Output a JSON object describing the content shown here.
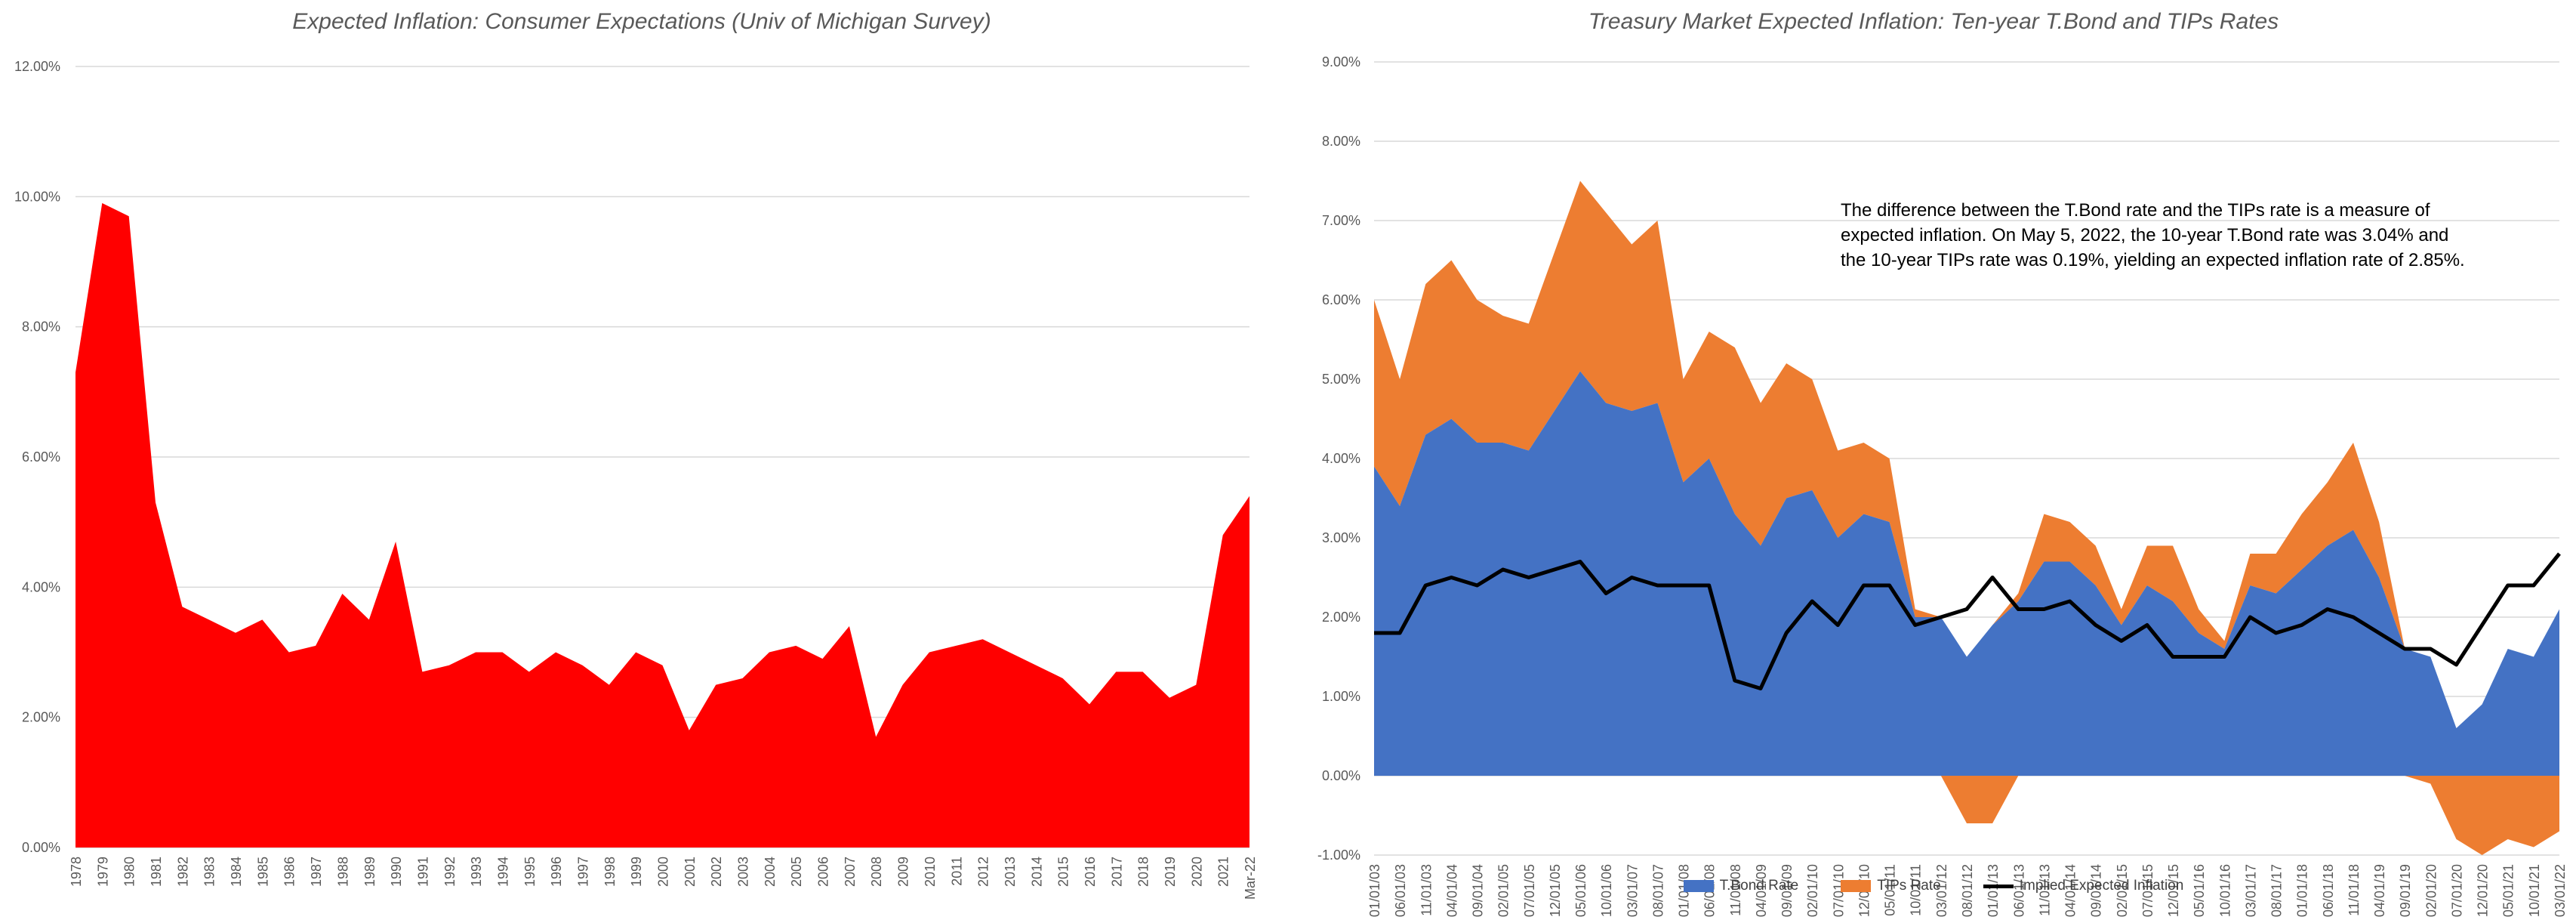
{
  "chart_data": [
    {
      "type": "area",
      "title": "Expected Inflation: Consumer Expectations (Univ of Michigan Survey)",
      "xlabel": "",
      "ylabel": "",
      "ylim": [
        0,
        12
      ],
      "y_ticks": [
        "0.00%",
        "2.00%",
        "4.00%",
        "6.00%",
        "8.00%",
        "10.00%",
        "12.00%"
      ],
      "categories": [
        "1978",
        "1979",
        "1980",
        "1981",
        "1982",
        "1983",
        "1984",
        "1985",
        "1986",
        "1987",
        "1988",
        "1989",
        "1990",
        "1991",
        "1992",
        "1993",
        "1994",
        "1995",
        "1996",
        "1997",
        "1998",
        "1999",
        "2000",
        "2001",
        "2002",
        "2003",
        "2004",
        "2005",
        "2006",
        "2007",
        "2008",
        "2009",
        "2010",
        "2011",
        "2012",
        "2013",
        "2014",
        "2015",
        "2016",
        "2017",
        "2018",
        "2019",
        "2020",
        "2021",
        "Mar-22"
      ],
      "series": [
        {
          "values": [
            7.3,
            9.9,
            9.7,
            5.3,
            3.7,
            3.5,
            3.3,
            3.5,
            3.0,
            3.1,
            3.9,
            3.5,
            4.7,
            2.7,
            2.8,
            3.0,
            3.0,
            2.7,
            3.0,
            2.8,
            2.5,
            3.0,
            2.8,
            1.8,
            2.5,
            2.6,
            3.0,
            3.1,
            2.9,
            3.4,
            1.7,
            2.5,
            3.0,
            3.1,
            3.2,
            3.0,
            2.8,
            2.6,
            2.2,
            2.7,
            2.7,
            2.3,
            2.5,
            4.8,
            5.4
          ]
        }
      ],
      "colors": {
        "fill": "#ff0000",
        "grid": "#d9d9d9"
      },
      "grid": true,
      "legend": "none"
    },
    {
      "type": "area",
      "title": "Treasury Market Expected Inflation: Ten-year T.Bond and TIPs Rates",
      "xlabel": "",
      "ylabel": "",
      "ylim": [
        -1,
        9
      ],
      "y_ticks": [
        "-1.00%",
        "0.00%",
        "1.00%",
        "2.00%",
        "3.00%",
        "4.00%",
        "5.00%",
        "6.00%",
        "7.00%",
        "8.00%",
        "9.00%"
      ],
      "x_tick_labels": [
        "01/01/03",
        "06/01/03",
        "11/01/03",
        "04/01/04",
        "09/01/04",
        "02/01/05",
        "07/01/05",
        "12/01/05",
        "05/01/06",
        "10/01/06",
        "03/01/07",
        "08/01/07",
        "01/01/08",
        "06/01/08",
        "11/01/08",
        "04/01/09",
        "09/01/09",
        "02/01/10",
        "07/01/10",
        "12/01/10",
        "05/01/11",
        "10/01/11",
        "03/01/12",
        "08/01/12",
        "01/01/13",
        "06/01/13",
        "11/01/13",
        "04/01/14",
        "09/01/14",
        "02/01/15",
        "07/01/15",
        "12/01/15",
        "05/01/16",
        "10/01/16",
        "03/01/17",
        "08/01/17",
        "01/01/18",
        "06/01/18",
        "11/01/18",
        "04/01/19",
        "09/01/19",
        "02/01/20",
        "07/01/20",
        "12/01/20",
        "05/01/21",
        "10/01/21",
        "03/01/22"
      ],
      "x": [
        "01/01/03",
        "06/01/03",
        "11/01/03",
        "04/01/04",
        "09/01/04",
        "02/01/05",
        "07/01/05",
        "12/01/05",
        "05/01/06",
        "10/01/06",
        "03/01/07",
        "08/01/07",
        "01/01/08",
        "06/01/08",
        "11/01/08",
        "04/01/09",
        "09/01/09",
        "02/01/10",
        "07/01/10",
        "12/01/10",
        "05/01/11",
        "10/01/11",
        "03/01/12",
        "08/01/12",
        "01/01/13",
        "06/01/13",
        "11/01/13",
        "04/01/14",
        "09/01/14",
        "02/01/15",
        "07/01/15",
        "12/01/15",
        "05/01/16",
        "10/01/16",
        "03/01/17",
        "08/01/17",
        "01/01/18",
        "06/01/18",
        "11/01/18",
        "04/01/19",
        "09/01/19",
        "02/01/20",
        "07/01/20",
        "12/01/20",
        "05/01/21",
        "10/01/21",
        "03/01/22"
      ],
      "series": [
        {
          "name": "T.Bond Rate",
          "values": [
            3.9,
            3.4,
            4.3,
            4.5,
            4.2,
            4.2,
            4.1,
            4.6,
            5.1,
            4.7,
            4.6,
            4.7,
            3.7,
            4.0,
            3.3,
            2.9,
            3.5,
            3.6,
            3.0,
            3.3,
            3.2,
            2.0,
            2.0,
            1.5,
            1.9,
            2.2,
            2.7,
            2.7,
            2.4,
            1.9,
            2.4,
            2.2,
            1.8,
            1.6,
            2.4,
            2.3,
            2.6,
            2.9,
            3.1,
            2.5,
            1.6,
            1.5,
            0.6,
            0.9,
            1.6,
            1.5,
            2.1
          ]
        },
        {
          "name": "TIPs Rate",
          "values": [
            2.1,
            1.6,
            1.9,
            2.0,
            1.8,
            1.6,
            1.6,
            2.0,
            2.4,
            2.4,
            2.1,
            2.3,
            1.3,
            1.6,
            2.1,
            1.8,
            1.7,
            1.4,
            1.1,
            0.9,
            0.8,
            0.1,
            0.0,
            -0.6,
            -0.6,
            0.1,
            0.6,
            0.5,
            0.5,
            0.2,
            0.5,
            0.7,
            0.3,
            0.1,
            0.4,
            0.5,
            0.7,
            0.8,
            1.1,
            0.7,
            0.0,
            -0.1,
            -0.8,
            -1.0,
            -0.8,
            -0.9,
            -0.7
          ]
        },
        {
          "name": "Implied Expected Inflation",
          "values": [
            1.8,
            1.8,
            2.4,
            2.5,
            2.4,
            2.6,
            2.5,
            2.6,
            2.7,
            2.3,
            2.5,
            2.4,
            2.4,
            2.4,
            1.2,
            1.1,
            1.8,
            2.2,
            1.9,
            2.4,
            2.4,
            1.9,
            2.0,
            2.1,
            2.5,
            2.1,
            2.1,
            2.2,
            1.9,
            1.7,
            1.9,
            1.5,
            1.5,
            1.5,
            2.0,
            1.8,
            1.9,
            2.1,
            2.0,
            1.8,
            1.6,
            1.6,
            1.4,
            1.9,
            2.4,
            2.4,
            2.8
          ]
        }
      ],
      "colors": {
        "tbond": "#4472c4",
        "tips": "#ed7d31",
        "inflation": "#000000",
        "grid": "#d9d9d9"
      },
      "grid": true,
      "legend": "bottom",
      "annotation": "The difference between the T.Bond rate and the TIPs rate is a measure of expected inflation. On May 5, 2022, the 10-year T.Bond rate was 3.04% and the 10-year TIPs rate was 0.19%, yielding an expected inflation rate of 2.85%."
    }
  ],
  "legend": {
    "tbond": "T.Bond Rate",
    "tips": "TIPs Rate",
    "inflation": "Implied Expected Inflation"
  }
}
